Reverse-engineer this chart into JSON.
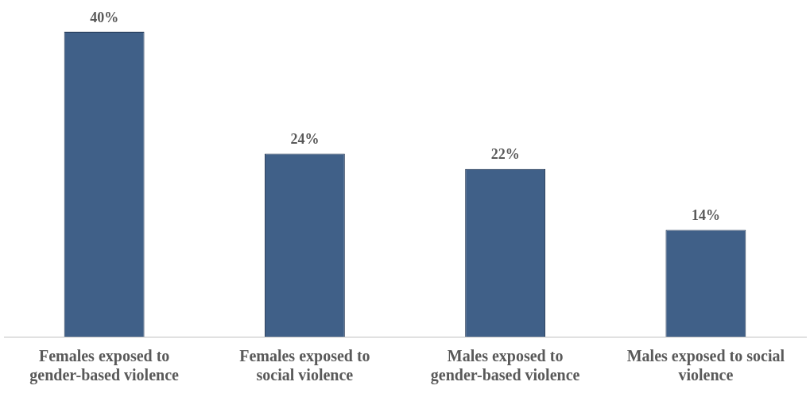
{
  "chart_data": {
    "type": "bar",
    "categories": [
      "Females exposed to gender-based violence",
      "Females exposed to social violence",
      "Males exposed to gender-based violence",
      "Males exposed to social violence"
    ],
    "values": [
      40,
      24,
      22,
      14
    ],
    "value_labels": [
      "40%",
      "24%",
      "22%",
      "14%"
    ],
    "color": "#406088",
    "grid": false,
    "legend": false,
    "tick_labels": "x"
  }
}
